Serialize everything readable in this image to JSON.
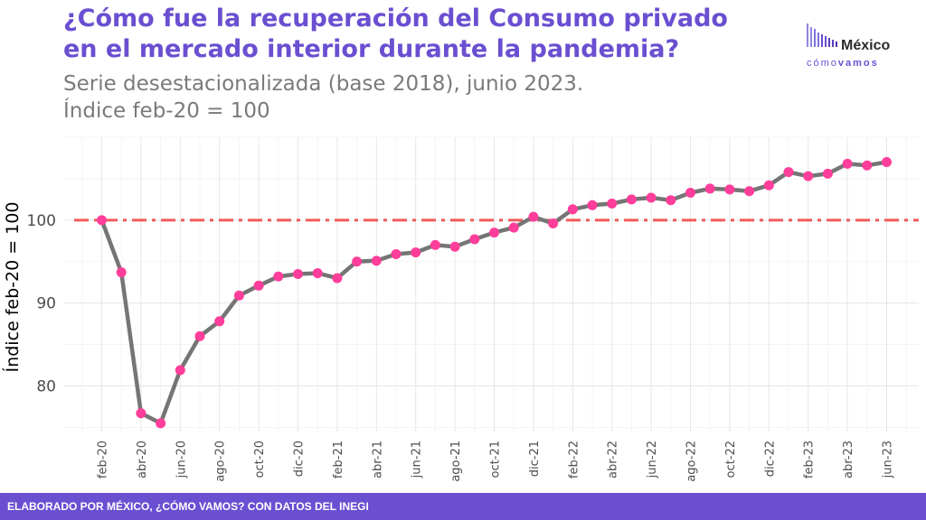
{
  "title_line1": "¿Cómo fue la recuperación del Consumo privado",
  "title_line2": "en el mercado interior durante la pandemia?",
  "subtitle_line1": "Serie desestacionalizada (base 2018), junio 2023.",
  "subtitle_line2": "Índice feb-20 = 100",
  "logo": {
    "top": "México",
    "bottom_a": "cómo",
    "bottom_b": "vamos"
  },
  "footer": "ELABORADO POR MÉXICO, ¿CÓMO VAMOS? CON DATOS DEL INEGI",
  "colors": {
    "accent": "#6a4fd1",
    "line": "#757575",
    "point": "#ff3d9a",
    "reference": "#f05a5a"
  },
  "chart_data": {
    "type": "line",
    "ylabel": "Índice feb-20 = 100",
    "ylim": [
      74.5,
      110
    ],
    "yticks": [
      80,
      90,
      100
    ],
    "reference_line": 100,
    "x": [
      "feb-20",
      "mar-20",
      "abr-20",
      "may-20",
      "jun-20",
      "jul-20",
      "ago-20",
      "sep-20",
      "oct-20",
      "nov-20",
      "dic-20",
      "ene-21",
      "feb-21",
      "mar-21",
      "abr-21",
      "may-21",
      "jun-21",
      "jul-21",
      "ago-21",
      "sep-21",
      "oct-21",
      "nov-21",
      "dic-21",
      "ene-22",
      "feb-22",
      "mar-22",
      "abr-22",
      "may-22",
      "jun-22",
      "jul-22",
      "ago-22",
      "sep-22",
      "oct-22",
      "nov-22",
      "dic-22",
      "ene-23",
      "feb-23",
      "mar-23",
      "abr-23",
      "may-23",
      "jun-23"
    ],
    "xtick_labels": [
      "feb-20",
      "abr-20",
      "jun-20",
      "ago-20",
      "oct-20",
      "dic-20",
      "feb-21",
      "abr-21",
      "jun-21",
      "ago-21",
      "oct-21",
      "dic-21",
      "feb-22",
      "abr-22",
      "jun-22",
      "ago-22",
      "oct-22",
      "dic-22",
      "feb-23",
      "abr-23",
      "jun-23"
    ],
    "series": [
      {
        "values": [
          100,
          93.7,
          76.7,
          75.5,
          81.9,
          86.0,
          87.8,
          90.9,
          92.1,
          93.2,
          93.5,
          93.6,
          93.0,
          95.0,
          95.1,
          95.9,
          96.1,
          97.0,
          96.8,
          97.7,
          98.5,
          99.1,
          100.4,
          99.6,
          101.3,
          101.8,
          102.0,
          102.5,
          102.7,
          102.4,
          103.3,
          103.8,
          103.7,
          103.5,
          104.2,
          105.8,
          105.3,
          105.6,
          106.8,
          106.6,
          107.0
        ]
      }
    ]
  }
}
